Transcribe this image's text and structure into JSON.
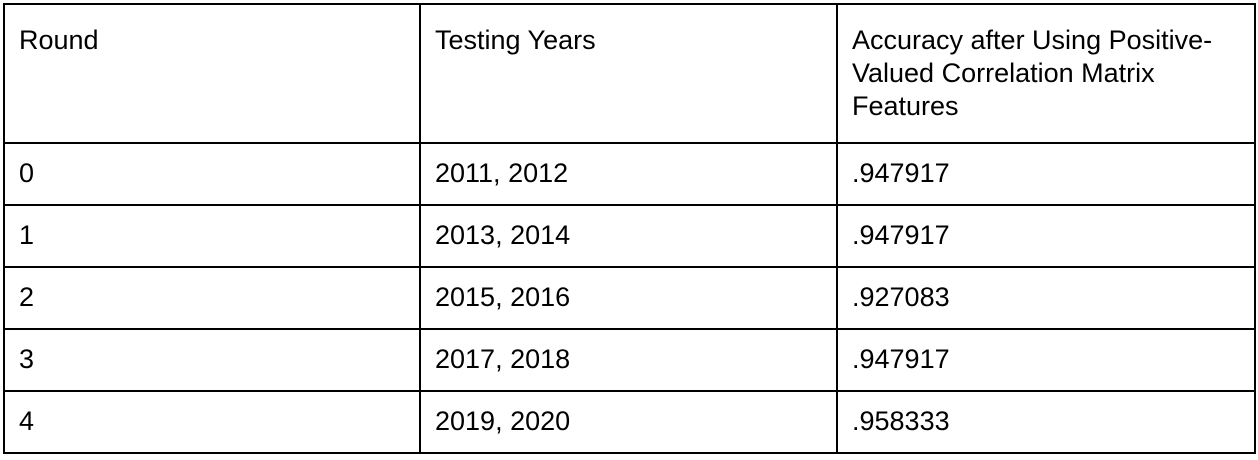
{
  "table": {
    "headers": [
      "Round",
      "Testing Years",
      "Accuracy after Using Positive-Valued  Correlation Matrix Features"
    ],
    "rows": [
      [
        "0",
        "2011, 2012",
        ".947917"
      ],
      [
        "1",
        "2013, 2014",
        ".947917"
      ],
      [
        "2",
        "2015, 2016",
        ".927083"
      ],
      [
        "3",
        "2017, 2018",
        ".947917"
      ],
      [
        "4",
        "2019, 2020",
        ".958333"
      ]
    ]
  }
}
